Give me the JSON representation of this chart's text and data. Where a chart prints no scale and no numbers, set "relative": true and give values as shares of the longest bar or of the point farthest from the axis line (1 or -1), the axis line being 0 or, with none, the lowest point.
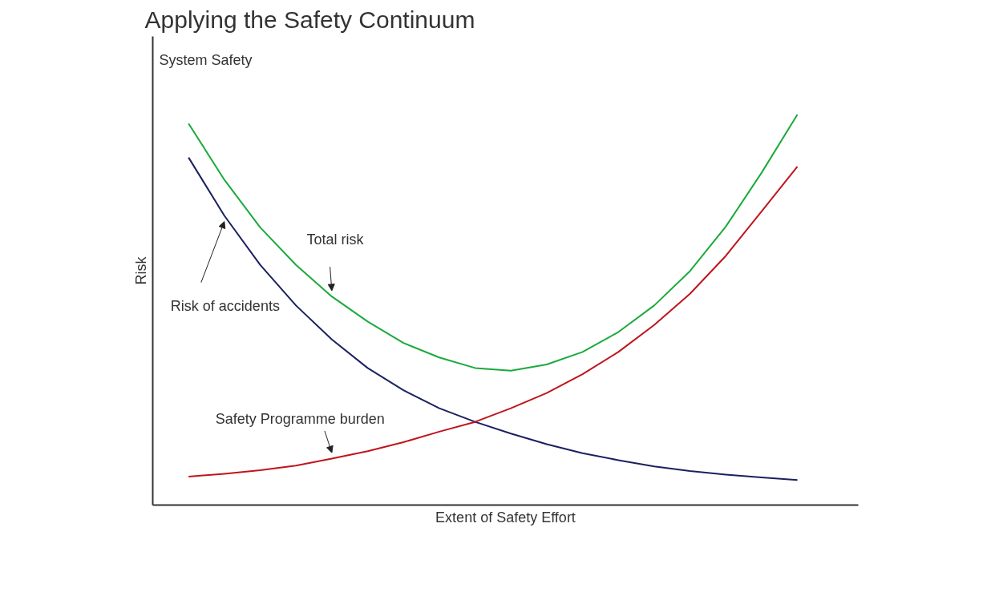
{
  "chart_data": {
    "type": "line",
    "relative": true,
    "title": "Applying the Safety Continuum",
    "xlabel": "Extent of Safety Effort",
    "ylabel": "Risk",
    "annotations": [
      "System Safety"
    ],
    "categories": [
      null,
      null,
      null,
      null,
      null,
      null,
      null,
      null,
      null,
      null,
      null,
      null,
      null,
      null,
      null,
      null,
      null,
      null
    ],
    "series": [
      {
        "name": "Total risk",
        "color": "#1aaa3c",
        "values": [
          0.977,
          0.833,
          0.711,
          0.615,
          0.534,
          0.47,
          0.415,
          0.378,
          0.351,
          0.344,
          0.36,
          0.392,
          0.443,
          0.511,
          0.599,
          0.713,
          0.851,
          1.0
        ]
      },
      {
        "name": "Risk of accidents",
        "color": "#1a2060",
        "values": [
          0.89,
          0.741,
          0.615,
          0.511,
          0.424,
          0.351,
          0.294,
          0.248,
          0.213,
          0.183,
          0.156,
          0.133,
          0.115,
          0.099,
          0.087,
          0.078,
          0.071,
          0.064
        ]
      },
      {
        "name": "Safety Programme burden",
        "color": "#c0141c",
        "values": [
          0.073,
          0.08,
          0.089,
          0.101,
          0.119,
          0.138,
          0.161,
          0.188,
          0.213,
          0.248,
          0.287,
          0.335,
          0.392,
          0.461,
          0.541,
          0.638,
          0.752,
          0.867
        ]
      }
    ]
  }
}
